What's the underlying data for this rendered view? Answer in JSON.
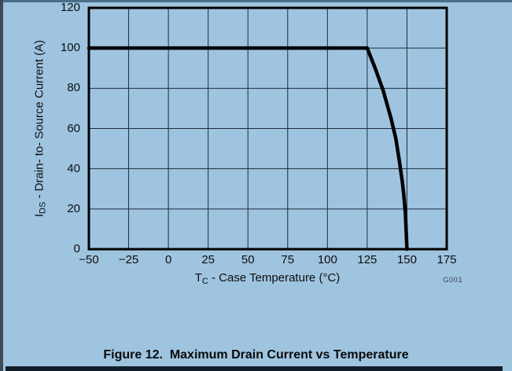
{
  "page": {
    "caption": "Figure 12.  Maximum Drain Current vs Temperature",
    "watermark": "G001"
  },
  "colors": {
    "background": "#9fc4e0",
    "grid": "#1e2d3d",
    "frame": "#000000",
    "curve": "#000000",
    "text": "#0e0e0e",
    "watermark_text": "#3c4650",
    "top_border": "#4a6d88",
    "left_border": "#3e4a54",
    "bottom_bar": "#131d29"
  },
  "chart_data": {
    "type": "line",
    "title": "Maximum Drain Current vs Temperature",
    "xlabel": "TC - Case Temperature (°C)",
    "ylabel": "IDS - Drain- to- Source Current (A)",
    "xlabel_parts": {
      "prefix": "T",
      "sub": "C",
      "rest": " - Case Temperature (°C)"
    },
    "ylabel_parts": {
      "prefix": "I",
      "sub": "DS",
      "rest": " - Drain- to- Source Current (A)"
    },
    "xlim": [
      -50,
      175
    ],
    "ylim": [
      0,
      120
    ],
    "x_ticks": [
      -50,
      -25,
      0,
      25,
      50,
      75,
      100,
      125,
      150,
      175
    ],
    "x_tick_labels": [
      "−50",
      "−25",
      "0",
      "25",
      "50",
      "75",
      "100",
      "125",
      "150",
      "175"
    ],
    "y_ticks": [
      0,
      20,
      40,
      60,
      80,
      100,
      120
    ],
    "y_tick_labels": [
      "0",
      "20",
      "40",
      "60",
      "80",
      "100",
      "120"
    ],
    "grid": true,
    "legend": "none",
    "series": [
      {
        "name": "IDS maximum drain current",
        "x": [
          -50,
          125,
          130,
          135,
          140,
          143,
          145,
          147,
          148,
          149,
          150
        ],
        "y": [
          100,
          100,
          90,
          79,
          65,
          55,
          45,
          34,
          27,
          18,
          0
        ]
      }
    ],
    "annotations": [
      "G001"
    ]
  }
}
